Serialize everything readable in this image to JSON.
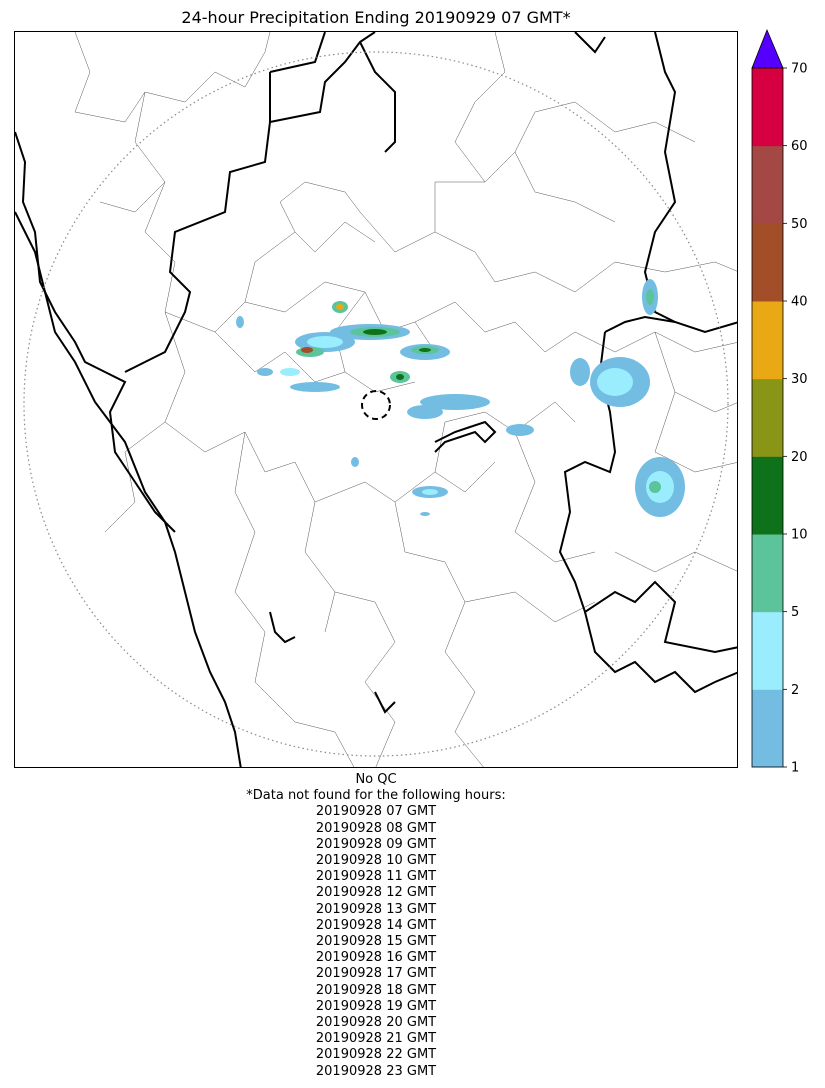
{
  "title": "24-hour Precipitation Ending 20190929 07 GMT*",
  "map": {
    "layers": [
      "state-borders",
      "district-borders",
      "coastline",
      "radar-range-ring",
      "radar-site-ring",
      "precipitation"
    ]
  },
  "colorbar": {
    "ticks": [
      "1",
      "2",
      "5",
      "10",
      "20",
      "30",
      "40",
      "50",
      "60",
      "70"
    ],
    "bins": [
      {
        "min": 1,
        "max": 2,
        "color": "#73bde3"
      },
      {
        "min": 2,
        "max": 5,
        "color": "#99edfc"
      },
      {
        "min": 5,
        "max": 10,
        "color": "#5bc49a"
      },
      {
        "min": 10,
        "max": 20,
        "color": "#0e721a"
      },
      {
        "min": 20,
        "max": 30,
        "color": "#8a9518"
      },
      {
        "min": 30,
        "max": 40,
        "color": "#e8a915"
      },
      {
        "min": 40,
        "max": 50,
        "color": "#a14e29"
      },
      {
        "min": 50,
        "max": 60,
        "color": "#a34844"
      },
      {
        "min": 60,
        "max": 70,
        "color": "#d60040"
      }
    ],
    "extend_color": "#5500ff",
    "extend": "max",
    "units": ""
  },
  "footer": {
    "qc_note": "No QC",
    "missing_note": "*Data not found for the following hours:",
    "missing_hours": [
      "20190928 07 GMT",
      "20190928 08 GMT",
      "20190928 09 GMT",
      "20190928 10 GMT",
      "20190928 11 GMT",
      "20190928 12 GMT",
      "20190928 13 GMT",
      "20190928 14 GMT",
      "20190928 15 GMT",
      "20190928 16 GMT",
      "20190928 17 GMT",
      "20190928 18 GMT",
      "20190928 19 GMT",
      "20190928 20 GMT",
      "20190928 21 GMT",
      "20190928 22 GMT",
      "20190928 23 GMT"
    ]
  }
}
